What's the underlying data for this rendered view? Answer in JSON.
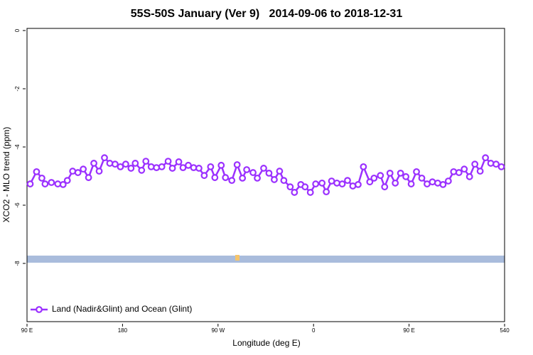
{
  "chart_data": {
    "type": "line",
    "title": "55S-50S January (Ver 9)   2014-09-06 to 2018-12-31",
    "x_label": "Longitude (deg E)",
    "y_label": "XCO2 - MLO trend (ppm)",
    "xlim": [
      90,
      540
    ],
    "xticks": [
      {
        "value": 90,
        "label": "90 E"
      },
      180,
      {
        "value": 270,
        "label": "90 W"
      },
      {
        "value": 360,
        "label": "0"
      },
      {
        "value": 450,
        "label": "90 E"
      },
      540
    ],
    "ylim": [
      -10,
      0
    ],
    "yticks": [
      0,
      -2,
      -4,
      -6,
      -8
    ],
    "grid": false,
    "legend": "bottom-left",
    "series": [
      {
        "name": "Land (Nadir&Glint) and Ocean (Glint)",
        "color": "#9b30ff",
        "x": [
          93,
          99,
          104,
          107,
          113,
          119,
          124,
          128,
          133,
          138,
          143,
          148,
          153,
          158,
          163,
          168,
          173,
          178,
          183,
          188,
          192,
          198,
          202,
          207,
          212,
          217,
          223,
          227,
          233,
          237,
          242,
          247,
          252,
          257,
          263,
          267,
          273,
          277,
          283,
          288,
          293,
          297,
          303,
          307,
          313,
          318,
          323,
          328,
          332,
          338,
          342,
          348,
          352,
          357,
          362,
          368,
          372,
          377,
          382,
          387,
          392,
          397,
          402,
          407,
          413,
          417,
          423,
          427,
          432,
          437,
          442,
          447,
          452,
          457,
          462,
          467,
          472,
          477,
          482,
          487,
          492,
          497,
          502,
          507,
          512,
          517,
          522,
          527,
          532,
          537
        ],
        "values": [
          -5.27,
          -4.85,
          -5.07,
          -5.27,
          -5.22,
          -5.27,
          -5.29,
          -5.15,
          -4.83,
          -4.88,
          -4.76,
          -5.05,
          -4.56,
          -4.83,
          -4.37,
          -4.56,
          -4.59,
          -4.68,
          -4.59,
          -4.73,
          -4.56,
          -4.8,
          -4.49,
          -4.68,
          -4.71,
          -4.68,
          -4.49,
          -4.73,
          -4.51,
          -4.71,
          -4.63,
          -4.71,
          -4.73,
          -4.98,
          -4.68,
          -5.05,
          -4.63,
          -5.05,
          -5.15,
          -4.61,
          -5.07,
          -4.78,
          -4.88,
          -5.07,
          -4.73,
          -4.9,
          -5.12,
          -4.83,
          -5.15,
          -5.37,
          -5.56,
          -5.29,
          -5.37,
          -5.56,
          -5.27,
          -5.24,
          -5.54,
          -5.17,
          -5.24,
          -5.27,
          -5.15,
          -5.34,
          -5.29,
          -4.68,
          -5.2,
          -5.07,
          -4.98,
          -5.37,
          -4.9,
          -5.24,
          -4.9,
          -5.02,
          -5.27,
          -4.85,
          -5.07,
          -5.27,
          -5.2,
          -5.24,
          -5.29,
          -5.17,
          -4.85,
          -4.88,
          -4.76,
          -5.02,
          -4.59,
          -4.83,
          -4.37,
          -4.56,
          -4.59,
          -4.68
        ]
      }
    ]
  }
}
